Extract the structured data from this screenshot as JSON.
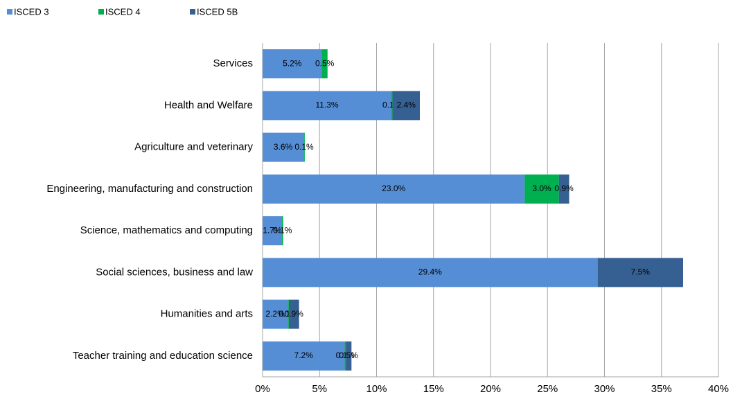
{
  "chart_data": {
    "type": "stacked-bar-horizontal",
    "categories": [
      "Services",
      "Health and Welfare",
      "Agriculture and veterinary",
      "Engineering, manufacturing and construction",
      "Science, mathematics and computing",
      "Social sciences, business and law",
      "Humanities and arts",
      "Teacher training and education science"
    ],
    "series": [
      {
        "name": "ISCED 3",
        "color": "#558ed5",
        "values": [
          5.2,
          11.3,
          3.6,
          23.0,
          1.7,
          29.4,
          2.2,
          7.2
        ],
        "value_labels": [
          "5.2%",
          "11.3%",
          "3.6%",
          "23.0%",
          "1.7%",
          "29.4%",
          "2.2%",
          "7.2%"
        ]
      },
      {
        "name": "ISCED 4",
        "color": "#00b050",
        "values": [
          0.5,
          0.1,
          0.1,
          3.0,
          0.1,
          null,
          0.1,
          0.1
        ],
        "value_labels": [
          "0.5%",
          "0.1%",
          "0.1%",
          "3.0%",
          "0.1%",
          null,
          "0.1%",
          "0.1%"
        ]
      },
      {
        "name": "ISCED 5B",
        "color": "#376092",
        "values": [
          null,
          2.4,
          null,
          0.9,
          null,
          7.5,
          0.9,
          0.5
        ],
        "value_labels": [
          null,
          "2.4%",
          null,
          "0.9%",
          null,
          "7.5%",
          "0.9%",
          "0.5%"
        ]
      }
    ],
    "xlim": [
      0,
      40
    ],
    "xticks": [
      {
        "value": 0,
        "label": "0%"
      },
      {
        "value": 5,
        "label": "5%"
      },
      {
        "value": 10,
        "label": "10%"
      },
      {
        "value": 15,
        "label": "15%"
      },
      {
        "value": 20,
        "label": "20%"
      },
      {
        "value": 25,
        "label": "25%"
      },
      {
        "value": 30,
        "label": "30%"
      },
      {
        "value": 35,
        "label": "35%"
      },
      {
        "value": 40,
        "label": "40%"
      }
    ],
    "grid": true,
    "legend": "top-left"
  }
}
